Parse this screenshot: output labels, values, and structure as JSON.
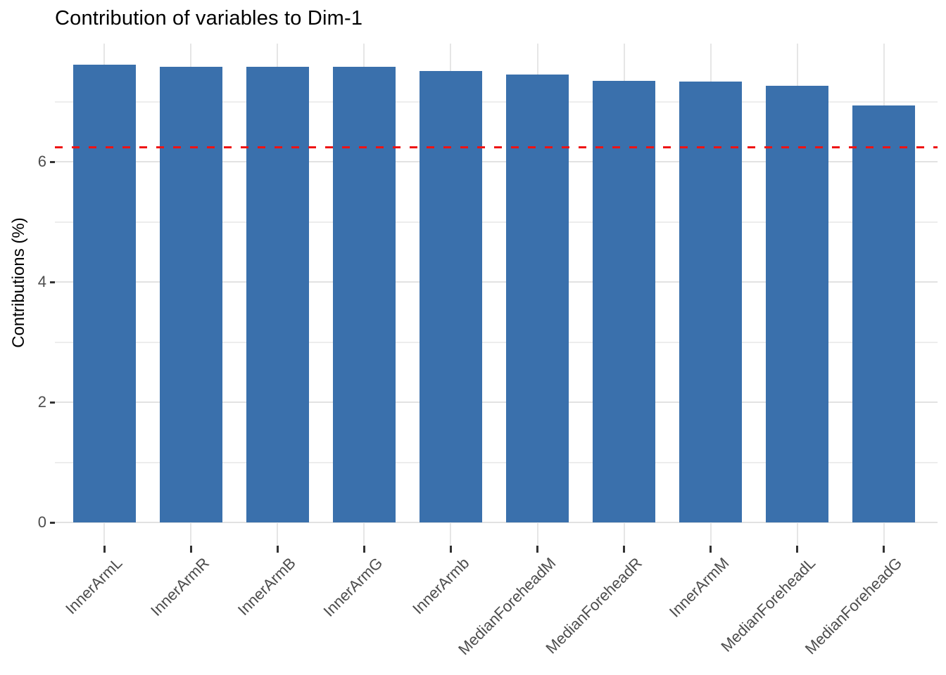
{
  "chart_data": {
    "type": "bar",
    "title": "Contribution of variables to Dim-1",
    "xlabel": "",
    "ylabel": "Contributions (%)",
    "categories": [
      "InnerArmL",
      "InnerArmR",
      "InnerArmB",
      "InnerArmG",
      "InnerArmb",
      "MedianForeheadM",
      "MedianForeheadR",
      "InnerArmM",
      "MedianForeheadL",
      "MedianForeheadG"
    ],
    "values": [
      7.62,
      7.59,
      7.58,
      7.58,
      7.51,
      7.46,
      7.35,
      7.34,
      7.27,
      6.94
    ],
    "ylim": [
      -0.38,
      7.97
    ],
    "yticks_major": [
      0,
      2,
      4,
      6
    ],
    "yticks_minor": [
      1,
      3,
      5,
      7
    ],
    "grid": true,
    "legend": "none",
    "reference_line": {
      "value": 6.25,
      "style": "dashed",
      "color": "#EE1414"
    },
    "bar_color": "#3A70AC",
    "colors": {
      "bar_fill": "#3A70AC",
      "ref_line_red": "#EE1414",
      "grid_major": "#E2E2E2",
      "grid_minor": "#EDEDED",
      "axis_text": "#4D4D4D",
      "title_text": "#000000",
      "background": "#FFFFFF"
    }
  }
}
